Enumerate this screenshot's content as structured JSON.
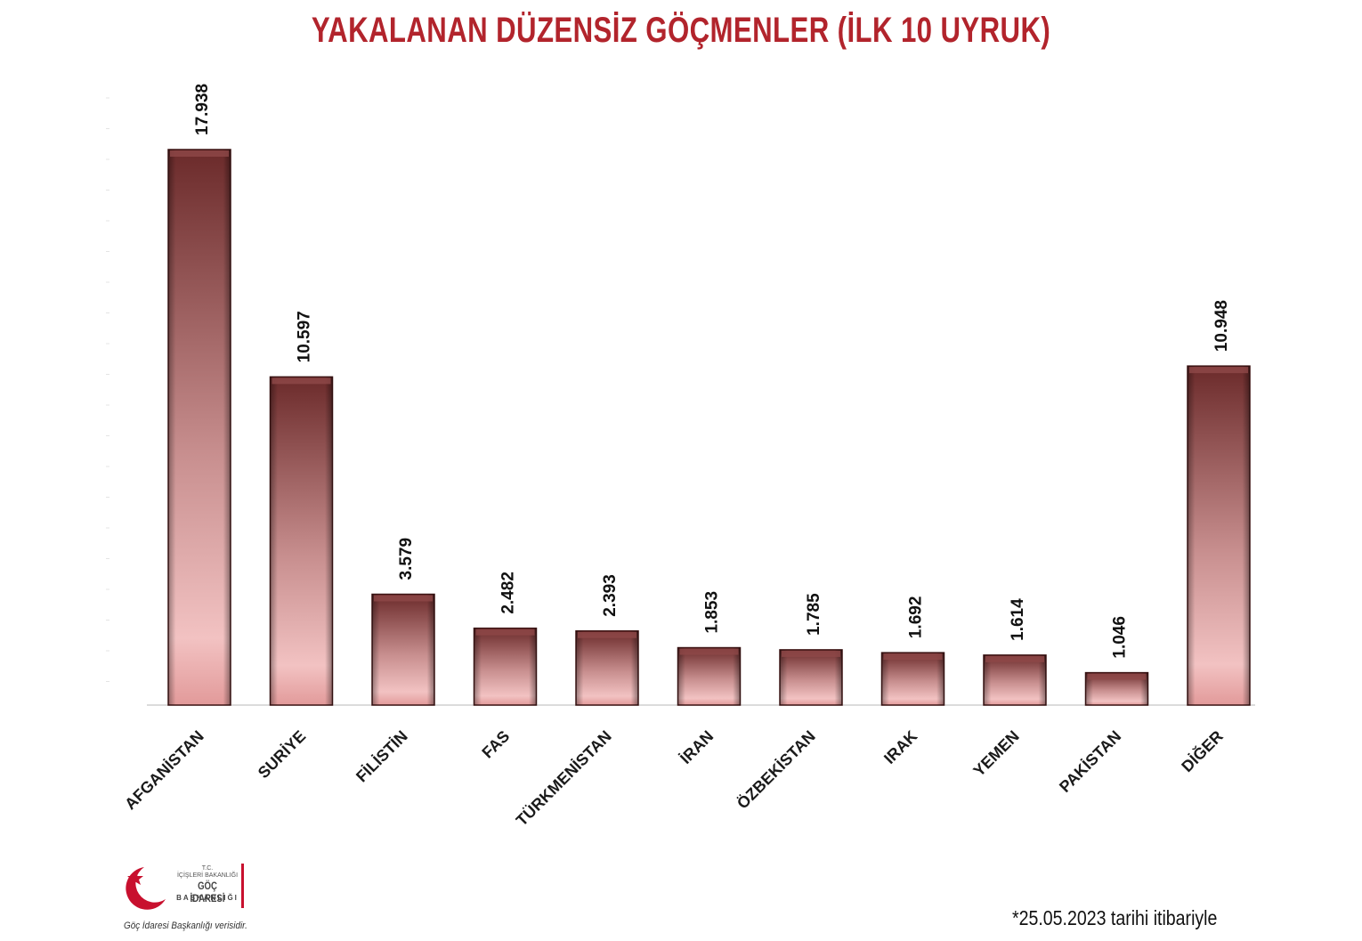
{
  "chart_data": {
    "type": "bar",
    "title": "YAKALANAN DÜZENSİZ GÖÇMENLER (İLK 10 UYRUK)",
    "categories": [
      "AFGANİSTAN",
      "SURİYE",
      "FİLİSTİN",
      "FAS",
      "TÜRKMENİSTAN",
      "İRAN",
      "ÖZBEKİSTAN",
      "IRAK",
      "YEMEN",
      "PAKİSTAN",
      "DİĞER"
    ],
    "values": [
      17938,
      10597,
      3579,
      2482,
      2393,
      1853,
      1785,
      1692,
      1614,
      1046,
      10948
    ],
    "value_labels": [
      "17.938",
      "10.597",
      "3.579",
      "2.482",
      "2.393",
      "1.853",
      "1.785",
      "1.692",
      "1.614",
      "1.046",
      "10.948"
    ],
    "xlabel": "",
    "ylabel": "",
    "ylim": [
      0,
      18000
    ],
    "grid": false,
    "legend": "none",
    "colors": {
      "bar_dark": "#6b2a2a",
      "bar_light": "#f2c2c2",
      "bar_edge": "#3d1414",
      "title": "#b2242c"
    }
  },
  "logo": {
    "line1": "T.C.",
    "line2": "İÇİŞLERİ BAKANLIĞI",
    "line3": "GÖÇ İDARESİ",
    "line4": "BAŞKANLIĞI"
  },
  "footer": {
    "credit": "Göç İdaresi Başkanlığı verisidir.",
    "date_note": "*25.05.2023 tarihi itibariyle"
  }
}
